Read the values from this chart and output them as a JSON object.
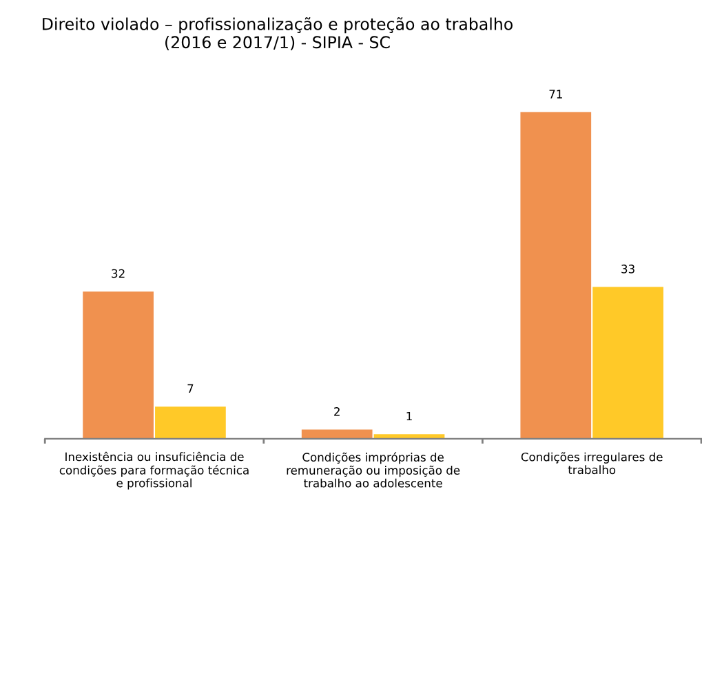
{
  "chart_data": {
    "type": "bar",
    "title": "Direito violado – profissionalização e proteção ao trabalho\n(2016 e 2017/1) - SIPIA - SC",
    "categories": [
      "Inexistência ou insuficiência de\ncondições para formação técnica\ne profissional",
      "Condições impróprias de\nremuneração ou imposição de\ntrabalho ao adolescente",
      "Condições irregulares de\ntrabalho"
    ],
    "series": [
      {
        "color": "#f0914f",
        "values": [
          32,
          2,
          71
        ]
      },
      {
        "color": "#ffc928",
        "values": [
          7,
          1,
          33
        ]
      }
    ],
    "data_labels": true,
    "grid": false
  }
}
